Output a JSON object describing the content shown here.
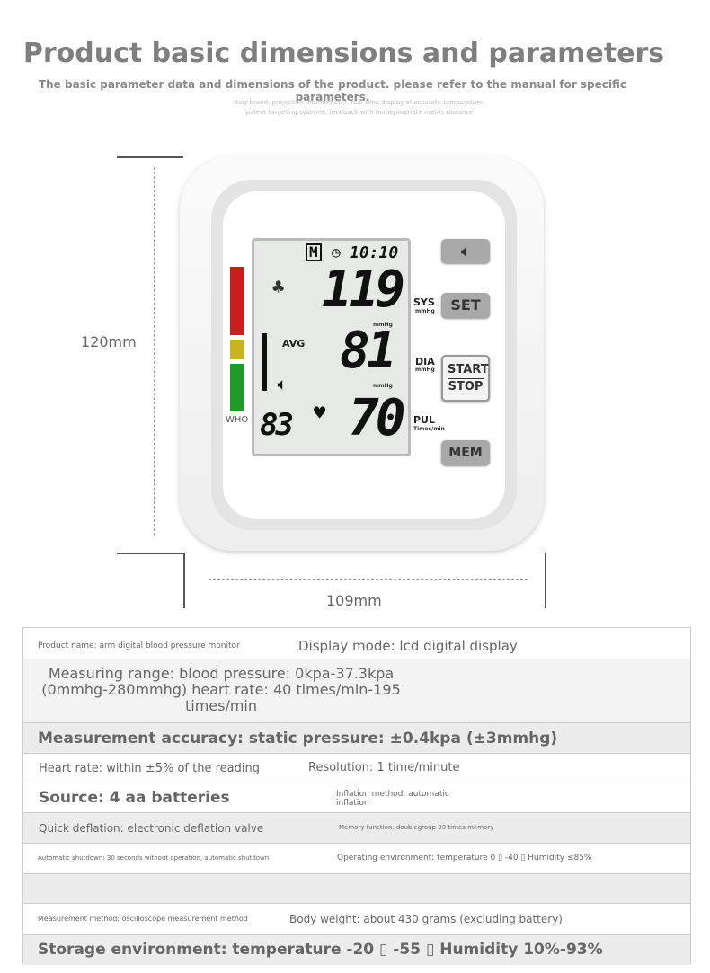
{
  "header": {
    "title": "Product basic dimensions and parameters",
    "subtitle": "The basic parameter data and dimensions of the product. please refer to the manual for specific parameters.",
    "tagline_1": "Italy brand, projection thermometer, real-time display of accurate temperature-",
    "tagline_2": "patent targeting systems, feedback with homepropriate metric distance"
  },
  "dimensions": {
    "height": "120mm",
    "width": "109mm"
  },
  "device": {
    "lcd": {
      "memory": "M",
      "time": "10:10",
      "sys": "119",
      "dia": "81",
      "pulse": "70",
      "memory_no": "83",
      "avg": "AVG",
      "who": "WHO",
      "mmhg": "mmHg",
      "sys_label": "SYS",
      "dia_label": "DIA",
      "pul_label": "PUL",
      "pul_unit": "Times/min"
    },
    "buttons": {
      "set": "SET",
      "start": "START",
      "stop": "STOP",
      "mem": "MEM"
    },
    "who_colors": [
      "#c81e1e",
      "#c8b41e",
      "#1e9a2a"
    ]
  },
  "specs": {
    "product_name": "Product name: arm digital blood pressure monitor",
    "display_mode": "Display mode: lcd digital display",
    "range_1": "Measuring range: blood pressure: 0kpa-37.3kpa",
    "range_2": "(0mmhg-280mmhg) heart rate: 40 times/min-195",
    "range_3": "times/min",
    "accuracy": "Measurement accuracy: static pressure: ±0.4kpa (±3mmhg)",
    "heart_rate": "Heart rate: within ±5% of the reading",
    "resolution": "Resolution: 1 time/minute",
    "source": "Source: 4 aa batteries",
    "inflation_1": "Inflation method: automatic",
    "inflation_2": "inflation",
    "deflation": "Quick deflation: electronic deflation valve",
    "memory": "Memory function: doublegroup 99 times memory",
    "shutdown": "Automatic shutdown: 30 seconds without operation, automatic shutdown",
    "operating": "Operating environment: temperature 0 ▯ -40 ▯ Humidity ≤85%",
    "method": "Measurement method: oscilloscope measurement method",
    "weight": "Body weight: about 430 grams (excluding battery)",
    "storage": "Storage environment: temperature -20 ▯ -55 ▯ Humidity 10%-93%"
  }
}
